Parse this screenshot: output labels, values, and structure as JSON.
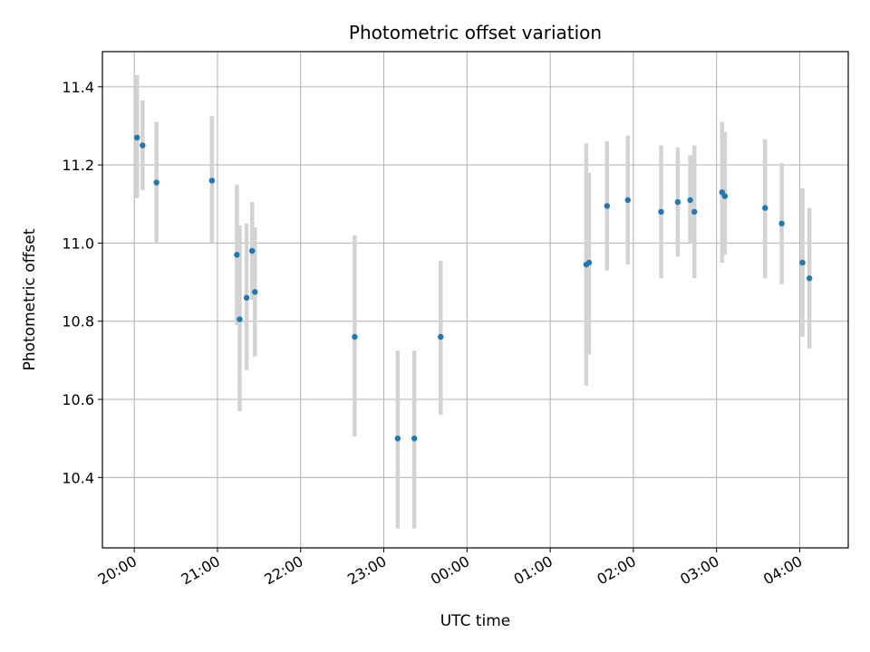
{
  "chart_data": {
    "type": "scatter",
    "title": "Photometric offset variation",
    "xlabel": "UTC time",
    "ylabel": "Photometric offset",
    "grid": true,
    "x_axis": {
      "type": "time",
      "start": "19:37",
      "end": "04:35",
      "day_rollover": "00:00",
      "ticks": [
        "20:00",
        "21:00",
        "22:00",
        "23:00",
        "00:00",
        "01:00",
        "02:00",
        "03:00",
        "04:00"
      ]
    },
    "y_axis": {
      "ylim": [
        10.22,
        11.49
      ],
      "ticks": [
        "10.4",
        "10.6",
        "10.8",
        "11.0",
        "11.2",
        "11.4"
      ]
    },
    "colors": {
      "points": "#1f77b4",
      "error_bars": "#d3d3d3"
    },
    "points": [
      {
        "x": "20:02",
        "y": 11.27,
        "yerr_low": 11.115,
        "yerr_high": 11.43
      },
      {
        "x": "20:06",
        "y": 11.25,
        "yerr_low": 11.135,
        "yerr_high": 11.365
      },
      {
        "x": "20:16",
        "y": 11.155,
        "yerr_low": 11.0,
        "yerr_high": 11.31
      },
      {
        "x": "20:56",
        "y": 11.16,
        "yerr_low": 11.0,
        "yerr_high": 11.325
      },
      {
        "x": "21:14",
        "y": 10.97,
        "yerr_low": 10.79,
        "yerr_high": 11.15
      },
      {
        "x": "21:16",
        "y": 10.805,
        "yerr_low": 10.57,
        "yerr_high": 11.045
      },
      {
        "x": "21:21",
        "y": 10.86,
        "yerr_low": 10.675,
        "yerr_high": 11.05
      },
      {
        "x": "21:25",
        "y": 10.98,
        "yerr_low": 10.855,
        "yerr_high": 11.105
      },
      {
        "x": "21:27",
        "y": 10.875,
        "yerr_low": 10.71,
        "yerr_high": 11.04
      },
      {
        "x": "22:39",
        "y": 10.76,
        "yerr_low": 10.505,
        "yerr_high": 11.02
      },
      {
        "x": "23:10",
        "y": 10.5,
        "yerr_low": 10.27,
        "yerr_high": 10.725
      },
      {
        "x": "23:22",
        "y": 10.5,
        "yerr_low": 10.27,
        "yerr_high": 10.725
      },
      {
        "x": "23:41",
        "y": 10.76,
        "yerr_low": 10.56,
        "yerr_high": 10.955
      },
      {
        "x": "01:26",
        "y": 10.945,
        "yerr_low": 10.635,
        "yerr_high": 11.255
      },
      {
        "x": "01:28",
        "y": 10.95,
        "yerr_low": 10.715,
        "yerr_high": 11.18
      },
      {
        "x": "01:41",
        "y": 11.095,
        "yerr_low": 10.93,
        "yerr_high": 11.26
      },
      {
        "x": "01:56",
        "y": 11.11,
        "yerr_low": 10.945,
        "yerr_high": 11.275
      },
      {
        "x": "02:20",
        "y": 11.08,
        "yerr_low": 10.91,
        "yerr_high": 11.25
      },
      {
        "x": "02:32",
        "y": 11.105,
        "yerr_low": 10.965,
        "yerr_high": 11.245
      },
      {
        "x": "02:41",
        "y": 11.11,
        "yerr_low": 11.0,
        "yerr_high": 11.225
      },
      {
        "x": "02:44",
        "y": 11.08,
        "yerr_low": 10.91,
        "yerr_high": 11.25
      },
      {
        "x": "03:04",
        "y": 11.13,
        "yerr_low": 10.95,
        "yerr_high": 11.31
      },
      {
        "x": "03:06",
        "y": 11.12,
        "yerr_low": 10.97,
        "yerr_high": 11.285
      },
      {
        "x": "03:35",
        "y": 11.09,
        "yerr_low": 10.91,
        "yerr_high": 11.265
      },
      {
        "x": "03:47",
        "y": 11.05,
        "yerr_low": 10.895,
        "yerr_high": 11.205
      },
      {
        "x": "04:02",
        "y": 10.95,
        "yerr_low": 10.76,
        "yerr_high": 11.14
      },
      {
        "x": "04:07",
        "y": 10.91,
        "yerr_low": 10.73,
        "yerr_high": 11.09
      }
    ]
  }
}
